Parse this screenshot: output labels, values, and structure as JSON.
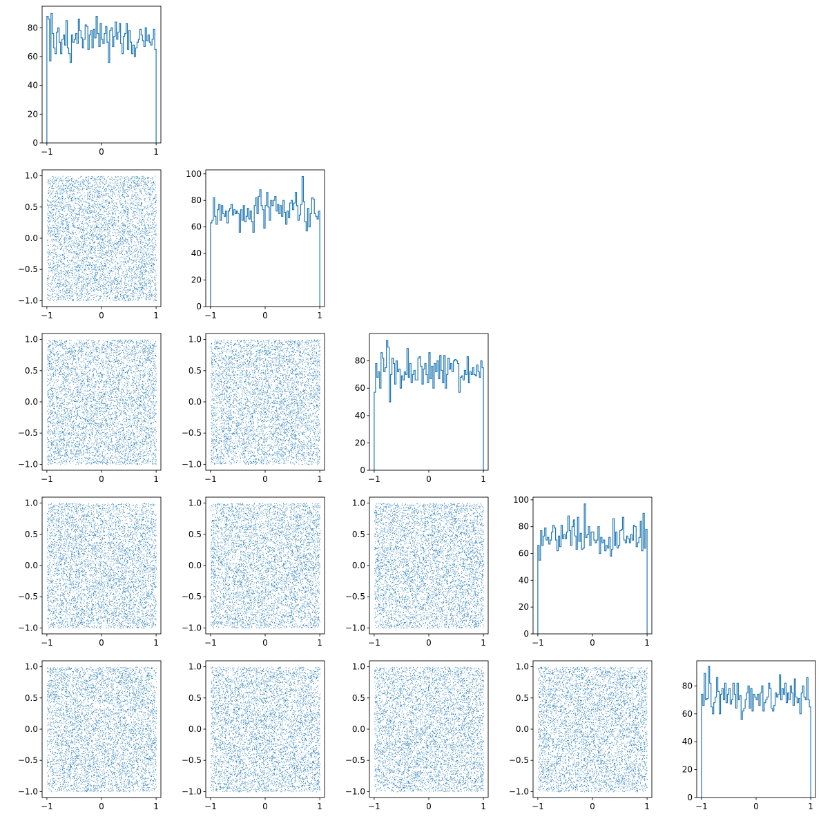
{
  "chart_data": {
    "type": "corner",
    "n_dims": 5,
    "n_bins": 80,
    "samples_per_dim": 5800,
    "hist_color": "#1f77b4",
    "scatter_color": "#1f77b4",
    "x_range": [
      -1,
      1
    ],
    "x_ticks": [
      -1,
      0,
      1
    ],
    "scatter_y_ticks": [
      -1.0,
      -0.5,
      0.0,
      0.5,
      1.0
    ],
    "grid": false,
    "legend": "none",
    "panels": [
      {
        "row": 0,
        "col": 0,
        "kind": "hist",
        "ylim": [
          0,
          95
        ],
        "y_ticks": [
          0,
          20,
          40,
          60,
          80
        ],
        "counts": [
          88,
          86,
          57,
          90,
          76,
          66,
          62,
          77,
          80,
          70,
          62,
          72,
          75,
          68,
          85,
          66,
          62,
          56,
          75,
          70,
          72,
          76,
          69,
          86,
          78,
          73,
          66,
          72,
          82,
          81,
          65,
          75,
          78,
          66,
          79,
          73,
          88,
          76,
          67,
          83,
          72,
          69,
          76,
          81,
          70,
          56,
          78,
          80,
          67,
          74,
          84,
          72,
          77,
          83,
          69,
          62,
          74,
          76,
          83,
          65,
          78,
          70,
          62,
          68,
          60,
          66,
          70,
          72,
          79,
          75,
          71,
          67,
          80,
          71,
          75,
          70,
          68,
          72,
          79,
          65
        ]
      },
      {
        "row": 1,
        "col": 0,
        "kind": "scatter",
        "seed": 11
      },
      {
        "row": 1,
        "col": 1,
        "kind": "hist",
        "ylim": [
          0,
          103
        ],
        "y_ticks": [
          0,
          20,
          40,
          60,
          80,
          100
        ],
        "counts": [
          63,
          65,
          82,
          68,
          62,
          73,
          77,
          65,
          76,
          70,
          68,
          72,
          63,
          72,
          74,
          77,
          69,
          73,
          70,
          72,
          70,
          56,
          73,
          65,
          76,
          64,
          68,
          74,
          66,
          72,
          64,
          56,
          76,
          82,
          70,
          83,
          88,
          76,
          73,
          59,
          76,
          86,
          75,
          65,
          80,
          76,
          80,
          83,
          72,
          77,
          70,
          76,
          68,
          80,
          71,
          62,
          72,
          67,
          78,
          80,
          73,
          78,
          86,
          76,
          65,
          69,
          77,
          98,
          79,
          64,
          57,
          74,
          60,
          70,
          82,
          81,
          70,
          68,
          66,
          72
        ]
      },
      {
        "row": 2,
        "col": 0,
        "kind": "scatter",
        "seed": 23
      },
      {
        "row": 2,
        "col": 1,
        "kind": "scatter",
        "seed": 37
      },
      {
        "row": 2,
        "col": 2,
        "kind": "hist",
        "ylim": [
          0,
          100
        ],
        "y_ticks": [
          0,
          20,
          40,
          60,
          80
        ],
        "counts": [
          57,
          78,
          68,
          72,
          60,
          86,
          82,
          72,
          75,
          95,
          90,
          50,
          70,
          82,
          78,
          63,
          80,
          72,
          74,
          60,
          69,
          66,
          72,
          70,
          89,
          68,
          78,
          64,
          70,
          73,
          66,
          66,
          82,
          83,
          76,
          63,
          74,
          78,
          70,
          64,
          86,
          67,
          76,
          60,
          78,
          72,
          80,
          67,
          84,
          73,
          64,
          84,
          60,
          70,
          82,
          74,
          78,
          72,
          80,
          81,
          80,
          78,
          57,
          68,
          69,
          66,
          73,
          70,
          83,
          64,
          72,
          70,
          75,
          70,
          69,
          77,
          72,
          68,
          80,
          75
        ]
      },
      {
        "row": 3,
        "col": 0,
        "kind": "scatter",
        "seed": 41
      },
      {
        "row": 3,
        "col": 1,
        "kind": "scatter",
        "seed": 53
      },
      {
        "row": 3,
        "col": 2,
        "kind": "scatter",
        "seed": 67
      },
      {
        "row": 3,
        "col": 3,
        "kind": "hist",
        "ylim": [
          0,
          102
        ],
        "y_ticks": [
          0,
          20,
          40,
          60,
          80,
          100
        ],
        "counts": [
          66,
          55,
          77,
          66,
          73,
          79,
          70,
          72,
          67,
          70,
          76,
          81,
          79,
          70,
          62,
          73,
          65,
          81,
          71,
          74,
          71,
          76,
          88,
          77,
          66,
          80,
          85,
          73,
          63,
          87,
          69,
          75,
          63,
          64,
          97,
          72,
          74,
          80,
          66,
          76,
          76,
          70,
          68,
          70,
          80,
          60,
          72,
          68,
          70,
          62,
          66,
          64,
          72,
          58,
          63,
          86,
          66,
          76,
          64,
          66,
          77,
          78,
          87,
          70,
          68,
          73,
          71,
          68,
          74,
          70,
          81,
          80,
          65,
          68,
          72,
          84,
          62,
          90,
          64,
          78
        ]
      },
      {
        "row": 4,
        "col": 0,
        "kind": "scatter",
        "seed": 79
      },
      {
        "row": 4,
        "col": 1,
        "kind": "scatter",
        "seed": 83
      },
      {
        "row": 4,
        "col": 2,
        "kind": "scatter",
        "seed": 97
      },
      {
        "row": 4,
        "col": 3,
        "kind": "scatter",
        "seed": 101
      },
      {
        "row": 4,
        "col": 4,
        "kind": "hist",
        "ylim": [
          0,
          98
        ],
        "y_ticks": [
          0,
          20,
          40,
          60,
          80
        ],
        "counts": [
          74,
          66,
          89,
          70,
          71,
          94,
          82,
          65,
          60,
          68,
          72,
          86,
          76,
          60,
          74,
          78,
          70,
          82,
          68,
          74,
          78,
          67,
          70,
          82,
          74,
          64,
          82,
          70,
          73,
          56,
          62,
          64,
          70,
          75,
          80,
          64,
          78,
          62,
          74,
          72,
          70,
          74,
          66,
          75,
          80,
          62,
          68,
          70,
          72,
          82,
          78,
          64,
          62,
          66,
          75,
          72,
          74,
          88,
          70,
          78,
          74,
          82,
          68,
          75,
          70,
          80,
          75,
          66,
          85,
          72,
          68,
          71,
          60,
          75,
          80,
          72,
          70,
          86,
          70,
          65
        ]
      }
    ]
  }
}
